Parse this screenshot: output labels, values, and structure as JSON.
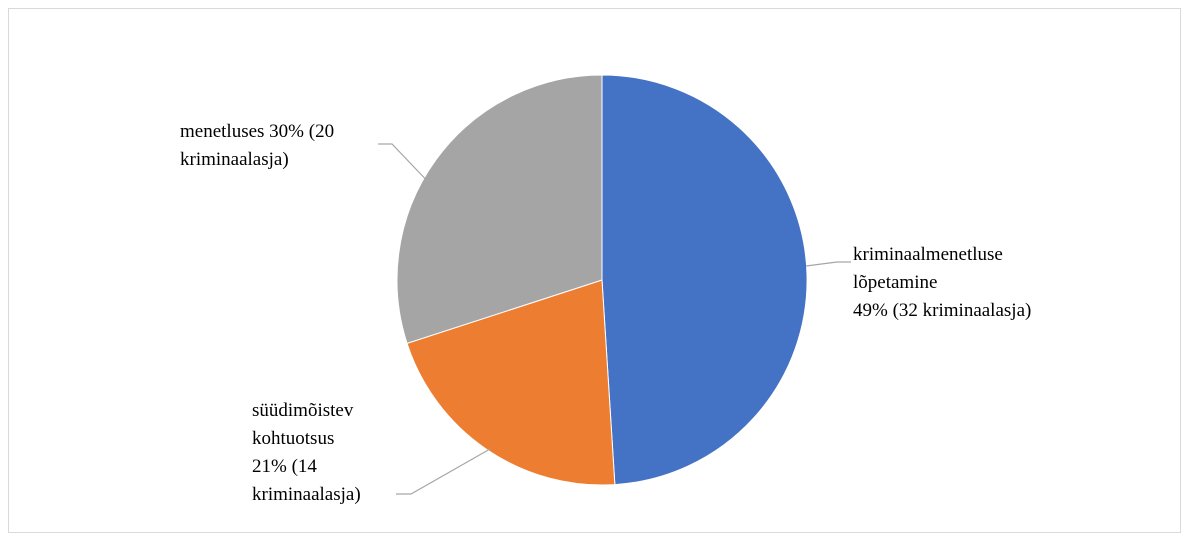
{
  "chart_data": {
    "type": "pie",
    "title": "",
    "start_angle_deg": 0,
    "direction": "clockwise",
    "slices": [
      {
        "label": [
          "kriminaalmenetluse",
          "lõpetamine",
          "49% (32 kriminaalasja)"
        ],
        "percent": 49,
        "count": 32,
        "color": "#4472C4"
      },
      {
        "label": [
          "süüdimõistev",
          "kohtuotsus",
          "21% (14",
          "kriminaalasja)"
        ],
        "percent": 21,
        "count": 14,
        "color": "#ED7D31"
      },
      {
        "label": [
          "menetluses 30% (20",
          "kriminaalasja)"
        ],
        "percent": 30,
        "count": 20,
        "color": "#A5A5A5"
      }
    ],
    "legend": "none",
    "data_labels": "outside-with-leader-lines"
  }
}
